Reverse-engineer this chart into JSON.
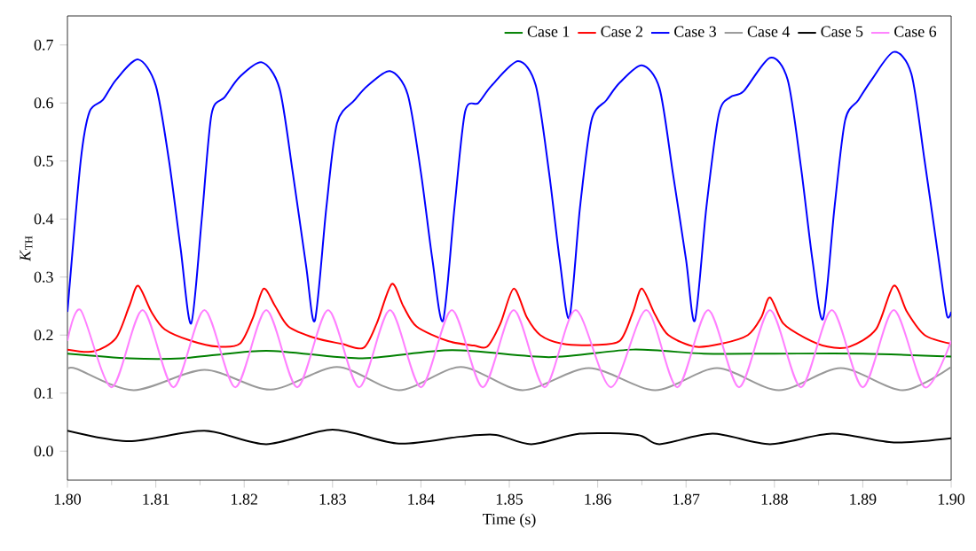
{
  "chart_data": {
    "type": "line",
    "xlabel": "Time (s)",
    "ylabel": "*K*$_{TH}$",
    "xlim": [
      1.8,
      1.9
    ],
    "ylim": [
      -0.05,
      0.75
    ],
    "xticks": [
      {
        "value": 1.8,
        "label": "1.80"
      },
      {
        "value": 1.81,
        "label": "1.81"
      },
      {
        "value": 1.82,
        "label": "1.82"
      },
      {
        "value": 1.83,
        "label": "1.83"
      },
      {
        "value": 1.84,
        "label": "1.84"
      },
      {
        "value": 1.85,
        "label": "1.85"
      },
      {
        "value": 1.86,
        "label": "1.86"
      },
      {
        "value": 1.87,
        "label": "1.87"
      },
      {
        "value": 1.88,
        "label": "1.88"
      },
      {
        "value": 1.89,
        "label": "1.89"
      },
      {
        "value": 1.9,
        "label": "1.90"
      }
    ],
    "yticks": [
      {
        "value": 0,
        "label": "0.0"
      },
      {
        "value": 0.1,
        "label": "0.1"
      },
      {
        "value": 0.2,
        "label": "0.2"
      },
      {
        "value": 0.3,
        "label": "0.3"
      },
      {
        "value": 0.4,
        "label": "0.4"
      },
      {
        "value": 0.5,
        "label": "0.5"
      },
      {
        "value": 0.6,
        "label": "0.6"
      },
      {
        "value": 0.7,
        "label": "0.7"
      }
    ],
    "grid": false,
    "legend": "top right",
    "marker": "none",
    "line_style": "solid",
    "series": [
      {
        "name": "Case 1",
        "color": "#008000",
        "x": [
          1.8,
          1.807,
          1.813,
          1.8225,
          1.833,
          1.8435,
          1.8545,
          1.864,
          1.872,
          1.88,
          1.89,
          1.9
        ],
        "values": [
          0.168,
          0.16,
          0.16,
          0.173,
          0.16,
          0.174,
          0.162,
          0.175,
          0.168,
          0.168,
          0.168,
          0.163
        ]
      },
      {
        "name": "Case 2",
        "color": "#ff0000",
        "x": [
          1.8,
          1.803,
          1.8055,
          1.807,
          1.808,
          1.8095,
          1.811,
          1.814,
          1.817,
          1.8195,
          1.821,
          1.8222,
          1.8235,
          1.825,
          1.828,
          1.831,
          1.8335,
          1.835,
          1.8367,
          1.838,
          1.8395,
          1.843,
          1.846,
          1.8475,
          1.849,
          1.8505,
          1.852,
          1.8535,
          1.856,
          1.8595,
          1.8625,
          1.864,
          1.865,
          1.8665,
          1.868,
          1.871,
          1.874,
          1.877,
          1.8785,
          1.8795,
          1.881,
          1.8835,
          1.886,
          1.8885,
          1.8915,
          1.8935,
          1.895,
          1.897,
          1.9
        ],
        "values": [
          0.175,
          0.172,
          0.195,
          0.25,
          0.285,
          0.24,
          0.21,
          0.19,
          0.18,
          0.185,
          0.23,
          0.28,
          0.25,
          0.215,
          0.195,
          0.185,
          0.178,
          0.22,
          0.288,
          0.25,
          0.215,
          0.19,
          0.182,
          0.18,
          0.22,
          0.28,
          0.23,
          0.2,
          0.185,
          0.183,
          0.19,
          0.24,
          0.28,
          0.235,
          0.2,
          0.18,
          0.185,
          0.2,
          0.23,
          0.265,
          0.22,
          0.195,
          0.18,
          0.18,
          0.21,
          0.285,
          0.24,
          0.2,
          0.185
        ]
      },
      {
        "name": "Case 3",
        "color": "#0000ff",
        "x": [
          1.8,
          1.8015,
          1.8025,
          1.804,
          1.8055,
          1.808,
          1.81,
          1.8115,
          1.8128,
          1.814,
          1.8152,
          1.8163,
          1.8178,
          1.8195,
          1.822,
          1.824,
          1.8255,
          1.827,
          1.828,
          1.8293,
          1.8305,
          1.8325,
          1.834,
          1.8365,
          1.8385,
          1.84,
          1.8413,
          1.8425,
          1.8438,
          1.845,
          1.8465,
          1.848,
          1.851,
          1.853,
          1.8545,
          1.8557,
          1.8568,
          1.858,
          1.8593,
          1.861,
          1.8625,
          1.865,
          1.867,
          1.8685,
          1.87,
          1.871,
          1.8723,
          1.8737,
          1.875,
          1.8765,
          1.8795,
          1.8815,
          1.883,
          1.8843,
          1.8855,
          1.8868,
          1.888,
          1.8895,
          1.891,
          1.8935,
          1.8955,
          1.897,
          1.8985,
          1.8995,
          1.9
        ],
        "values": [
          0.24,
          0.5,
          0.585,
          0.605,
          0.64,
          0.675,
          0.63,
          0.5,
          0.35,
          0.22,
          0.4,
          0.58,
          0.61,
          0.645,
          0.67,
          0.625,
          0.48,
          0.32,
          0.225,
          0.42,
          0.565,
          0.605,
          0.63,
          0.655,
          0.615,
          0.48,
          0.33,
          0.225,
          0.42,
          0.585,
          0.6,
          0.63,
          0.672,
          0.63,
          0.48,
          0.33,
          0.23,
          0.42,
          0.57,
          0.605,
          0.635,
          0.665,
          0.625,
          0.48,
          0.33,
          0.225,
          0.42,
          0.58,
          0.61,
          0.62,
          0.678,
          0.64,
          0.49,
          0.33,
          0.228,
          0.42,
          0.57,
          0.605,
          0.64,
          0.688,
          0.65,
          0.5,
          0.34,
          0.235,
          0.24
        ]
      },
      {
        "name": "Case 4",
        "color": "#999999",
        "x": [
          1.8,
          1.801,
          1.8075,
          1.8155,
          1.823,
          1.8305,
          1.8375,
          1.8445,
          1.8515,
          1.859,
          1.8665,
          1.8735,
          1.8805,
          1.8875,
          1.8945,
          1.9
        ],
        "values": [
          0.14,
          0.142,
          0.105,
          0.14,
          0.106,
          0.145,
          0.105,
          0.145,
          0.105,
          0.143,
          0.105,
          0.143,
          0.105,
          0.143,
          0.105,
          0.145
        ]
      },
      {
        "name": "Case 5",
        "color": "#000000",
        "x": [
          1.8,
          1.807,
          1.8155,
          1.8225,
          1.83,
          1.8375,
          1.8445,
          1.8485,
          1.8525,
          1.858,
          1.8645,
          1.867,
          1.873,
          1.8795,
          1.8865,
          1.8935,
          1.9
        ],
        "values": [
          0.035,
          0.017,
          0.035,
          0.012,
          0.037,
          0.013,
          0.025,
          0.028,
          0.012,
          0.03,
          0.028,
          0.012,
          0.03,
          0.012,
          0.03,
          0.015,
          0.022
        ]
      },
      {
        "name": "Case 6",
        "color": "#ff80ff",
        "x": [
          1.8,
          1.8015,
          1.805,
          1.8085,
          1.812,
          1.8155,
          1.819,
          1.8225,
          1.826,
          1.8295,
          1.833,
          1.8365,
          1.84,
          1.8435,
          1.847,
          1.8505,
          1.854,
          1.8575,
          1.8615,
          1.8655,
          1.869,
          1.8725,
          1.876,
          1.8795,
          1.883,
          1.8865,
          1.89,
          1.8935,
          1.897,
          1.9
        ],
        "values": [
          0.19,
          0.243,
          0.11,
          0.243,
          0.11,
          0.243,
          0.11,
          0.243,
          0.11,
          0.243,
          0.11,
          0.243,
          0.11,
          0.243,
          0.11,
          0.243,
          0.11,
          0.243,
          0.11,
          0.243,
          0.11,
          0.243,
          0.11,
          0.243,
          0.11,
          0.243,
          0.11,
          0.243,
          0.11,
          0.19
        ]
      }
    ]
  }
}
